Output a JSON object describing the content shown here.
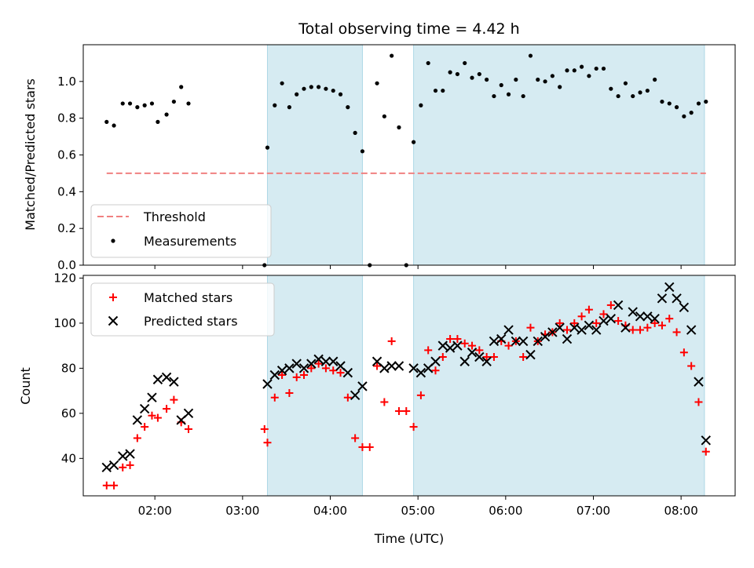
{
  "figure": {
    "title": "Total observing time = 4.42 h"
  },
  "colors": {
    "shade": "#add8e6",
    "threshold": "#f08080",
    "matched": "#ff0000",
    "predicted": "#000000",
    "measurement": "#000000"
  },
  "chart_data": [
    {
      "type": "scatter",
      "title": "Total observing time = 4.42 h",
      "xlabel": "",
      "ylabel": "Matched/Predicted stars",
      "xlim": [
        "01:11",
        "08:37"
      ],
      "ylim": [
        0.0,
        1.2
      ],
      "y_ticks": [
        0.0,
        0.2,
        0.4,
        0.6,
        0.8,
        1.0
      ],
      "y_tick_labels": [
        "0.0",
        "0.2",
        "0.4",
        "0.6",
        "0.8",
        "1.0"
      ],
      "grid": false,
      "legend_position": "lower-left",
      "shaded_intervals": [
        [
          "03:17",
          "04:22"
        ],
        [
          "04:57",
          "08:16"
        ]
      ],
      "threshold": {
        "name": "Threshold",
        "y": 0.5,
        "x_range": [
          "01:27",
          "08:17"
        ],
        "style": "dashed"
      },
      "series": [
        {
          "name": "Measurements",
          "marker": "dot",
          "x": [
            "01:27",
            "01:32",
            "01:38",
            "01:43",
            "01:48",
            "01:53",
            "01:58",
            "02:02",
            "02:08",
            "02:13",
            "02:18",
            "02:23",
            "03:15",
            "03:17",
            "03:22",
            "03:27",
            "03:32",
            "03:37",
            "03:42",
            "03:47",
            "03:52",
            "03:57",
            "04:02",
            "04:07",
            "04:12",
            "04:17",
            "04:22",
            "04:27",
            "04:32",
            "04:37",
            "04:42",
            "04:47",
            "04:52",
            "04:57",
            "05:02",
            "05:07",
            "05:12",
            "05:17",
            "05:22",
            "05:27",
            "05:32",
            "05:37",
            "05:42",
            "05:47",
            "05:52",
            "05:57",
            "06:02",
            "06:07",
            "06:12",
            "06:17",
            "06:22",
            "06:27",
            "06:32",
            "06:37",
            "06:42",
            "06:47",
            "06:52",
            "06:57",
            "07:02",
            "07:07",
            "07:12",
            "07:17",
            "07:22",
            "07:27",
            "07:32",
            "07:37",
            "07:42",
            "07:47",
            "07:52",
            "07:57",
            "08:02",
            "08:07",
            "08:12",
            "08:17"
          ],
          "y": [
            0.78,
            0.76,
            0.88,
            0.88,
            0.86,
            0.87,
            0.88,
            0.78,
            0.82,
            0.89,
            0.97,
            0.88,
            0.0,
            0.64,
            0.87,
            0.99,
            0.86,
            0.93,
            0.96,
            0.97,
            0.97,
            0.96,
            0.95,
            0.93,
            0.86,
            0.72,
            0.62,
            0.0,
            0.99,
            0.81,
            1.14,
            0.75,
            0.0,
            0.67,
            0.87,
            1.1,
            0.95,
            0.95,
            1.05,
            1.04,
            1.1,
            1.02,
            1.04,
            1.01,
            0.92,
            0.98,
            0.93,
            1.01,
            0.92,
            1.14,
            1.01,
            1.0,
            1.03,
            0.97,
            1.06,
            1.06,
            1.08,
            1.03,
            1.07,
            1.07,
            0.96,
            0.92,
            0.99,
            0.92,
            0.94,
            0.95,
            1.01,
            0.89,
            0.88,
            0.86,
            0.81,
            0.83,
            0.88,
            0.89
          ]
        }
      ]
    },
    {
      "type": "scatter",
      "title": "",
      "xlabel": "Time (UTC)",
      "ylabel": "Count",
      "xlim": [
        "01:11",
        "08:37"
      ],
      "ylim": [
        23.4,
        121.2
      ],
      "x_ticks": [
        "02:00",
        "03:00",
        "04:00",
        "05:00",
        "06:00",
        "07:00",
        "08:00"
      ],
      "x_tick_labels": [
        "02:00",
        "03:00",
        "04:00",
        "05:00",
        "06:00",
        "07:00",
        "08:00"
      ],
      "y_ticks": [
        40,
        60,
        80,
        100,
        120
      ],
      "y_tick_labels": [
        "40",
        "60",
        "80",
        "100",
        "120"
      ],
      "grid": false,
      "legend_position": "upper-left",
      "shaded_intervals": [
        [
          "03:17",
          "04:22"
        ],
        [
          "04:57",
          "08:16"
        ]
      ],
      "series": [
        {
          "name": "Matched stars",
          "marker": "plus",
          "x": [
            "01:27",
            "01:32",
            "01:38",
            "01:43",
            "01:48",
            "01:53",
            "01:58",
            "02:02",
            "02:08",
            "02:13",
            "02:18",
            "02:23",
            "03:15",
            "03:17",
            "03:22",
            "03:27",
            "03:32",
            "03:37",
            "03:42",
            "03:47",
            "03:52",
            "03:57",
            "04:02",
            "04:07",
            "04:12",
            "04:17",
            "04:22",
            "04:27",
            "04:32",
            "04:37",
            "04:42",
            "04:47",
            "04:52",
            "04:57",
            "05:02",
            "05:07",
            "05:12",
            "05:17",
            "05:22",
            "05:27",
            "05:32",
            "05:37",
            "05:42",
            "05:47",
            "05:52",
            "05:57",
            "06:02",
            "06:07",
            "06:12",
            "06:17",
            "06:22",
            "06:27",
            "06:32",
            "06:37",
            "06:42",
            "06:47",
            "06:52",
            "06:57",
            "07:02",
            "07:07",
            "07:12",
            "07:17",
            "07:22",
            "07:27",
            "07:32",
            "07:37",
            "07:42",
            "07:47",
            "07:52",
            "07:57",
            "08:02",
            "08:07",
            "08:12",
            "08:17"
          ],
          "y": [
            28,
            28,
            36,
            37,
            49,
            54,
            59,
            58,
            62,
            66,
            56,
            53,
            53,
            47,
            67,
            77,
            69,
            76,
            77,
            80,
            82,
            80,
            79,
            78,
            67,
            49,
            45,
            45,
            81,
            65,
            92,
            61,
            61,
            54,
            68,
            88,
            79,
            85,
            93,
            93,
            91,
            90,
            88,
            85,
            85,
            92,
            90,
            92,
            85,
            98,
            92,
            95,
            96,
            100,
            97,
            100,
            103,
            106,
            100,
            104,
            108,
            101,
            99,
            97,
            97,
            98,
            100,
            99,
            102,
            96,
            87,
            81,
            65,
            43
          ]
        },
        {
          "name": "Predicted stars",
          "marker": "x",
          "x": [
            "01:27",
            "01:32",
            "01:38",
            "01:43",
            "01:48",
            "01:53",
            "01:58",
            "02:02",
            "02:08",
            "02:13",
            "02:18",
            "02:23",
            "03:17",
            "03:22",
            "03:27",
            "03:32",
            "03:37",
            "03:42",
            "03:47",
            "03:52",
            "03:57",
            "04:02",
            "04:07",
            "04:12",
            "04:17",
            "04:22",
            "04:32",
            "04:37",
            "04:42",
            "04:47",
            "04:57",
            "05:02",
            "05:07",
            "05:12",
            "05:17",
            "05:22",
            "05:27",
            "05:32",
            "05:37",
            "05:42",
            "05:47",
            "05:52",
            "05:57",
            "06:02",
            "06:07",
            "06:12",
            "06:17",
            "06:22",
            "06:27",
            "06:32",
            "06:37",
            "06:42",
            "06:47",
            "06:52",
            "06:57",
            "07:02",
            "07:07",
            "07:12",
            "07:17",
            "07:22",
            "07:27",
            "07:32",
            "07:37",
            "07:42",
            "07:47",
            "07:52",
            "07:57",
            "08:02",
            "08:07",
            "08:12",
            "08:17"
          ],
          "y": [
            36,
            37,
            41,
            42,
            57,
            62,
            67,
            75,
            76,
            74,
            57,
            60,
            73,
            77,
            79,
            80,
            82,
            80,
            82,
            84,
            83,
            83,
            81,
            78,
            68,
            72,
            83,
            80,
            81,
            81,
            80,
            78,
            80,
            83,
            90,
            89,
            90,
            83,
            87,
            85,
            83,
            92,
            93,
            97,
            92,
            92,
            86,
            92,
            94,
            96,
            98,
            93,
            98,
            97,
            99,
            97,
            101,
            102,
            108,
            98,
            105,
            103,
            103,
            102,
            111,
            116,
            111,
            107,
            97,
            74,
            48
          ]
        }
      ]
    }
  ]
}
